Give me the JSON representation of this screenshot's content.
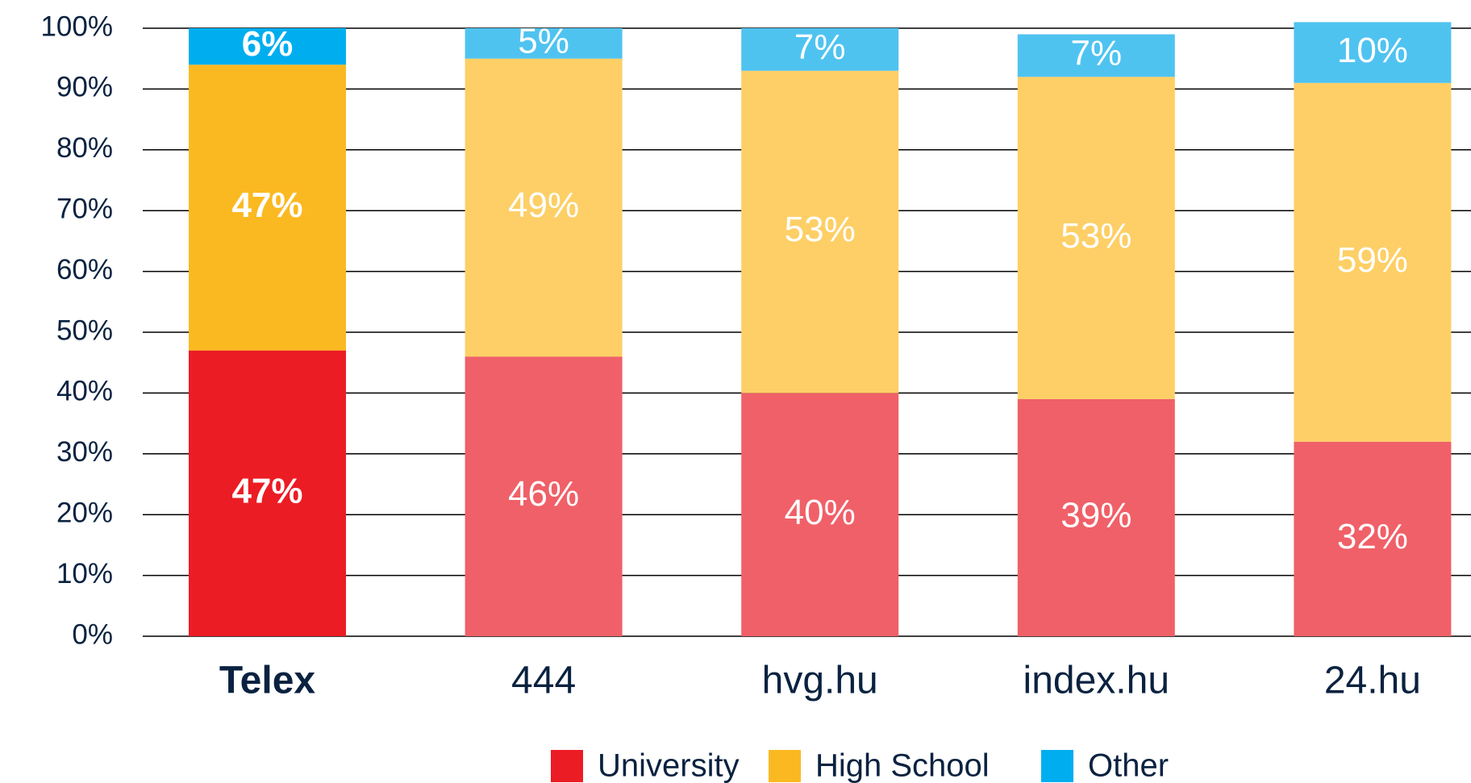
{
  "chart_data": {
    "type": "stacked_bar",
    "categories": [
      "Telex",
      "444",
      "hvg.hu",
      "index.hu",
      "24.hu"
    ],
    "highlight": "Telex",
    "series": [
      {
        "name": "University",
        "color": "#ec1c24",
        "colors": [
          "#ec1c24",
          "#f06068",
          "#f06068",
          "#f06068",
          "#f06068"
        ],
        "values": [
          47,
          46,
          40,
          39,
          32
        ],
        "value_labels": [
          "47%",
          "46%",
          "40%",
          "39%",
          "32%"
        ]
      },
      {
        "name": "High School",
        "color": "#fbb921",
        "colors": [
          "#fbb921",
          "#fdcf66",
          "#fdcf66",
          "#fdcf66",
          "#fdcf66"
        ],
        "values": [
          47,
          49,
          53,
          53,
          59
        ],
        "value_labels": [
          "47%",
          "49%",
          "53%",
          "53%",
          "59%"
        ]
      },
      {
        "name": "Other",
        "color": "#00aeef",
        "colors": [
          "#00aeef",
          "#4fc3f0",
          "#4fc3f0",
          "#4fc3f0",
          "#4fc3f0"
        ],
        "values": [
          6,
          5,
          7,
          7,
          10
        ],
        "value_labels": [
          "6%",
          "5%",
          "7%",
          "7%",
          "10%"
        ]
      }
    ],
    "ylim": [
      0,
      100
    ],
    "yticks": [
      {
        "value": 0,
        "label": "0%"
      },
      {
        "value": 10,
        "label": "10%"
      },
      {
        "value": 20,
        "label": "20%"
      },
      {
        "value": 30,
        "label": "30%"
      },
      {
        "value": 40,
        "label": "40%"
      },
      {
        "value": 50,
        "label": "50%"
      },
      {
        "value": 60,
        "label": "60%"
      },
      {
        "value": 70,
        "label": "70%"
      },
      {
        "value": 80,
        "label": "80%"
      },
      {
        "value": 90,
        "label": "90%"
      },
      {
        "value": 100,
        "label": "100%"
      }
    ],
    "grid": true,
    "legend": "bottom"
  }
}
